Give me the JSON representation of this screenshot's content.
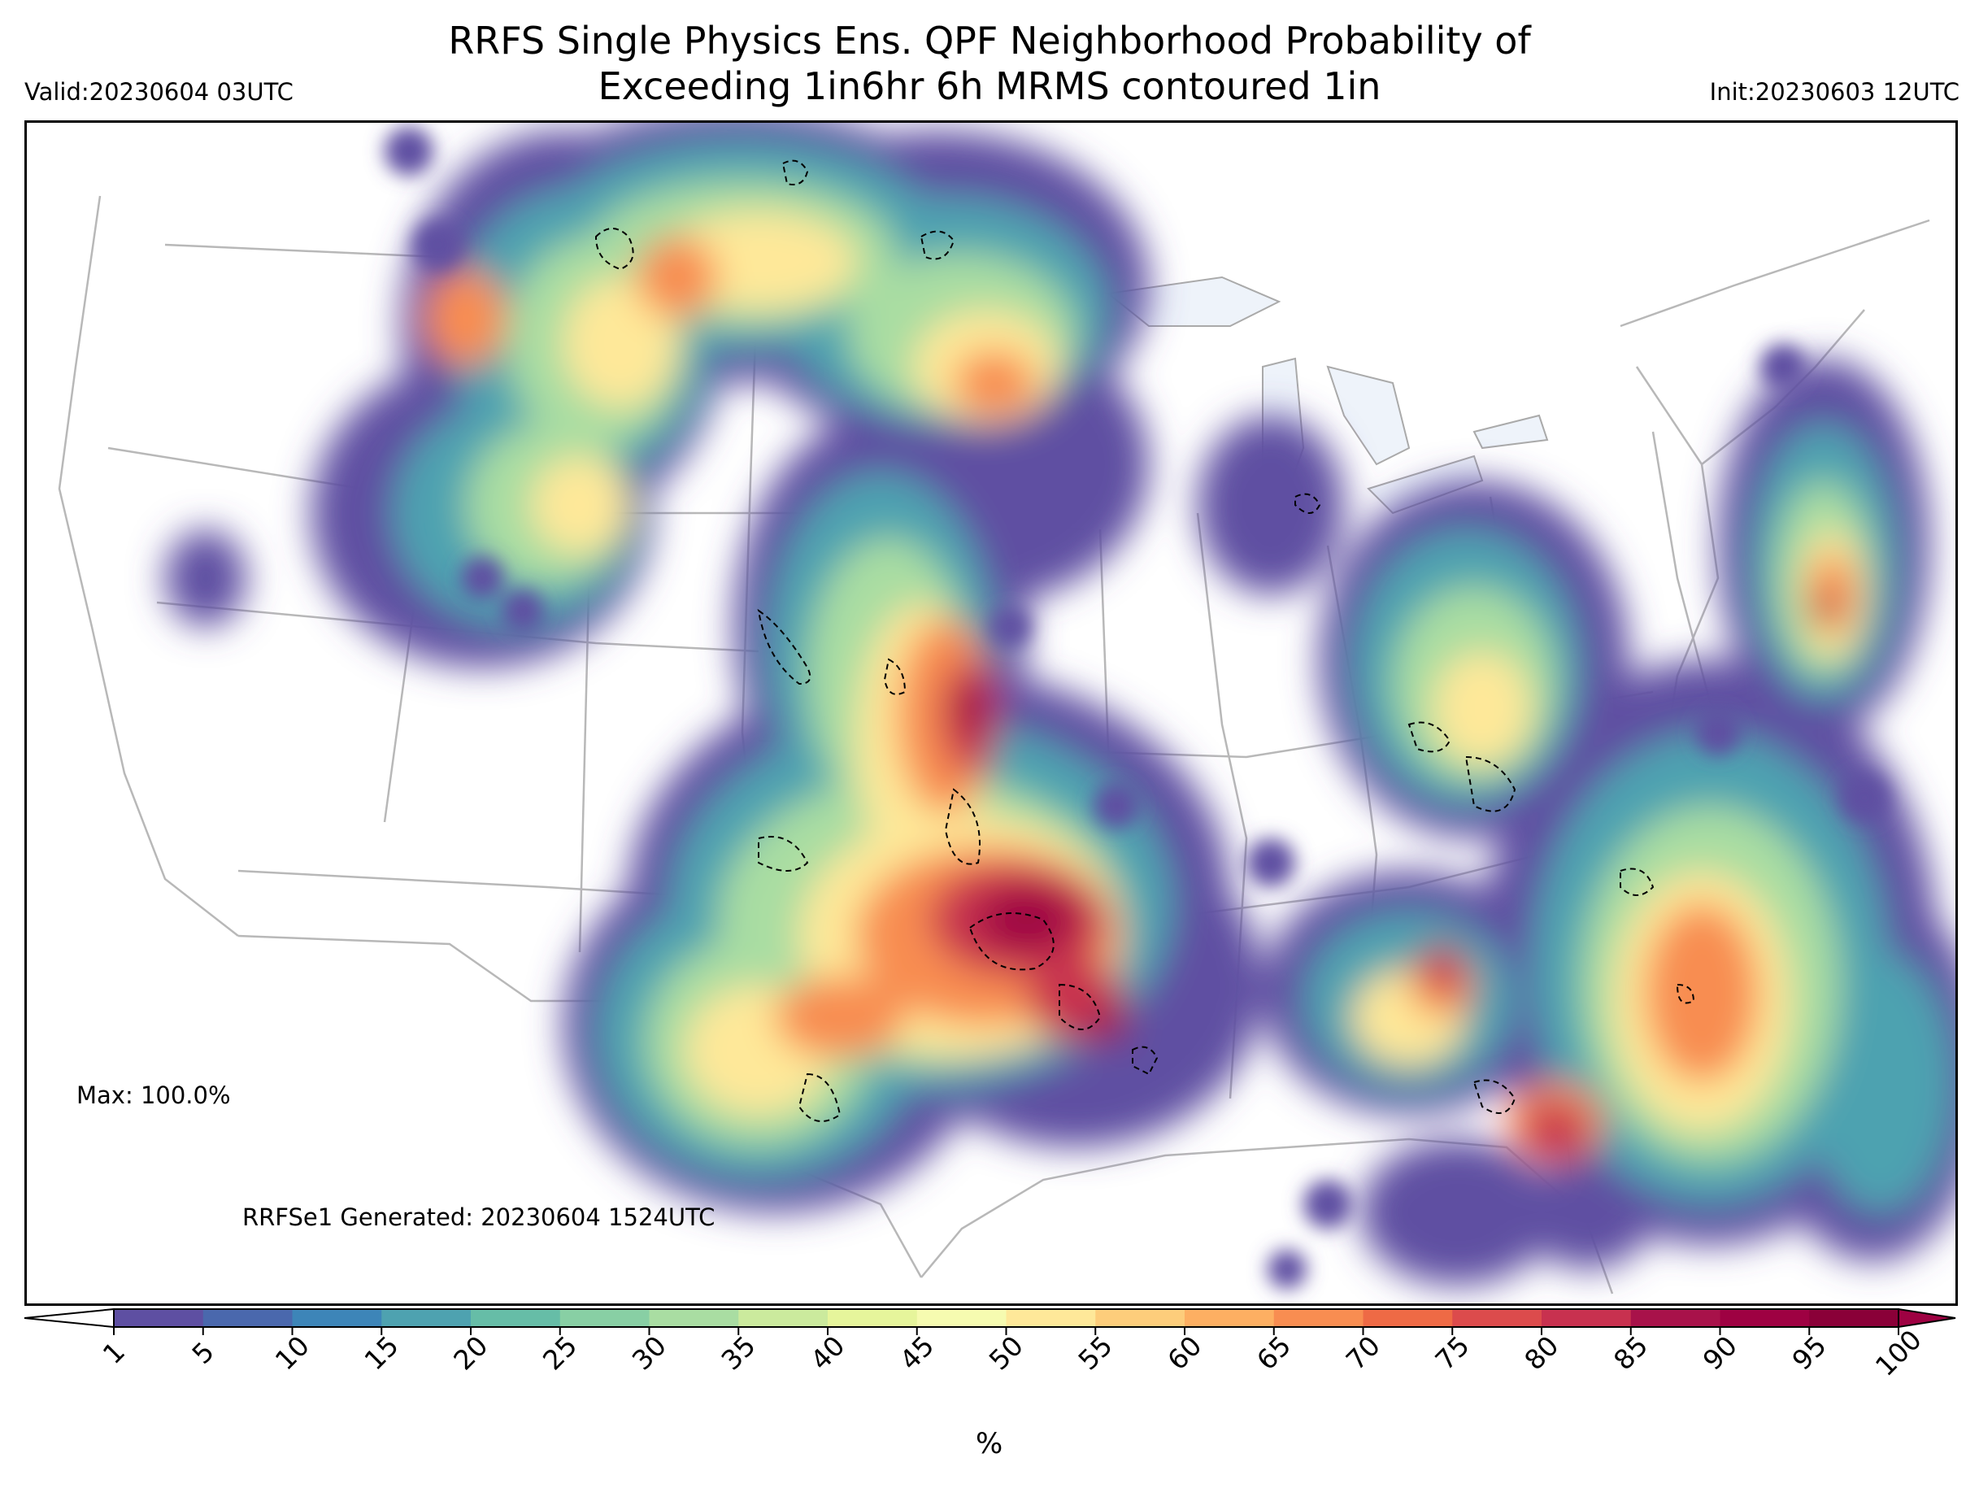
{
  "title_line1": "RRFS Single Physics Ens. QPF Neighborhood Probability of",
  "title_line2": "Exceeding 1in6hr 6h MRMS contoured 1in",
  "valid": "Valid:20230604 03UTC",
  "init": "Init:20230603 12UTC",
  "max_note": "Max: 100.0%",
  "generated_note": "RRFSe1 Generated: 20230604 1524UTC",
  "colorbar": {
    "unit": "%",
    "ticks": [
      "1",
      "5",
      "10",
      "15",
      "20",
      "25",
      "30",
      "35",
      "40",
      "45",
      "50",
      "55",
      "60",
      "65",
      "70",
      "75",
      "80",
      "85",
      "90",
      "95",
      "100"
    ],
    "colors": [
      "#5e4fa2",
      "#4a68ad",
      "#3d85b8",
      "#4ea2b0",
      "#66bda7",
      "#88cfa4",
      "#a9dda2",
      "#cbea9d",
      "#e6f59b",
      "#f6fbb0",
      "#fee899",
      "#fdcd7b",
      "#fdaf62",
      "#f88d51",
      "#ee6a45",
      "#dc4b4c",
      "#c8314f",
      "#a8124a",
      "#9e0142",
      "#8a0038"
    ],
    "extend_low": "#ffffff",
    "extend_high": "#9e0142"
  }
}
